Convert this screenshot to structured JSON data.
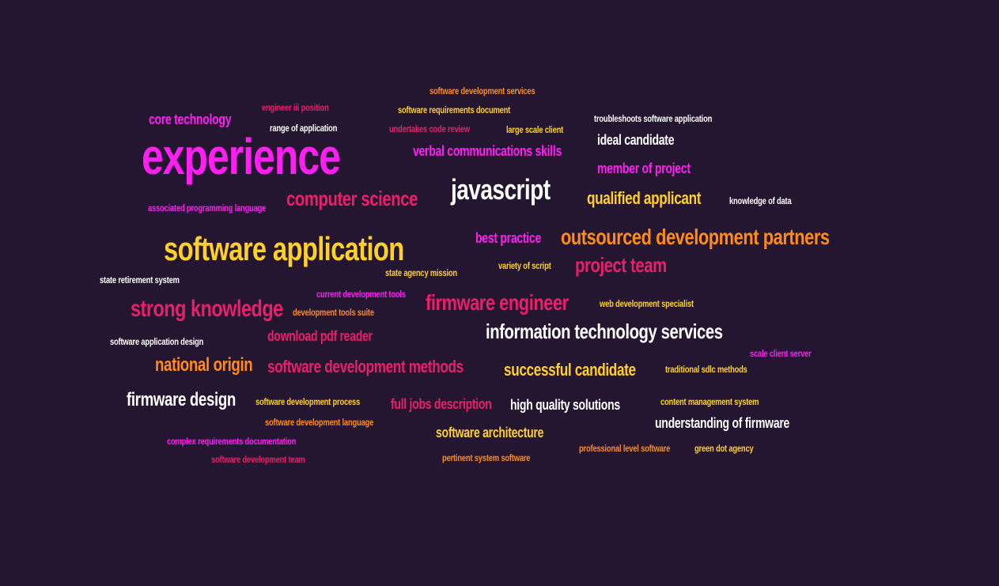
{
  "word_cloud": {
    "words": [
      {
        "text": "software development services",
        "color": "#ff8c1a"
      },
      {
        "text": "engineer iii position",
        "color": "#ea1f6a"
      },
      {
        "text": "software requirements document",
        "color": "#ffd028"
      },
      {
        "text": "core technology",
        "color": "#ff1ff2"
      },
      {
        "text": "range of application",
        "color": "#ffffff"
      },
      {
        "text": "undertakes code review",
        "color": "#ea1f6a"
      },
      {
        "text": "large scale client",
        "color": "#ffd028"
      },
      {
        "text": "troubleshoots software application",
        "color": "#ffffff"
      },
      {
        "text": "ideal candidate",
        "color": "#ffffff"
      },
      {
        "text": "experience",
        "color": "#ff1ff2"
      },
      {
        "text": "verbal communications skills",
        "color": "#ff1ff2"
      },
      {
        "text": "member of project",
        "color": "#ff1ff2"
      },
      {
        "text": "javascript",
        "color": "#ffffff"
      },
      {
        "text": "computer science",
        "color": "#ea1f6a"
      },
      {
        "text": "qualified applicant",
        "color": "#ffd028"
      },
      {
        "text": "knowledge of data",
        "color": "#ffffff"
      },
      {
        "text": "associated programming language",
        "color": "#ff1ff2"
      },
      {
        "text": "software application",
        "color": "#ffd028"
      },
      {
        "text": "best practice",
        "color": "#ff1ff2"
      },
      {
        "text": "outsourced development partners",
        "color": "#ff8c1a"
      },
      {
        "text": "variety of script",
        "color": "#ffd028"
      },
      {
        "text": "project team",
        "color": "#ea1f6a"
      },
      {
        "text": "state retirement system",
        "color": "#ffffff"
      },
      {
        "text": "state agency mission",
        "color": "#ffd028"
      },
      {
        "text": "current development tools",
        "color": "#ff1ff2"
      },
      {
        "text": "strong knowledge",
        "color": "#ea1f6a"
      },
      {
        "text": "development tools suite",
        "color": "#ff8c1a"
      },
      {
        "text": "firmware engineer",
        "color": "#ea1f6a"
      },
      {
        "text": "web development specialist",
        "color": "#ffd028"
      },
      {
        "text": "download pdf reader",
        "color": "#ea1f6a"
      },
      {
        "text": "information technology services",
        "color": "#ffffff"
      },
      {
        "text": "software application design",
        "color": "#ffffff"
      },
      {
        "text": "scale client server",
        "color": "#ff1ff2"
      },
      {
        "text": "national origin",
        "color": "#ff8c1a"
      },
      {
        "text": "software development methods",
        "color": "#ea1f6a"
      },
      {
        "text": "successful candidate",
        "color": "#ffd028"
      },
      {
        "text": "traditional sdlc methods",
        "color": "#ffd028"
      },
      {
        "text": "firmware design",
        "color": "#ffffff"
      },
      {
        "text": "software development process",
        "color": "#ffd028"
      },
      {
        "text": "full jobs description",
        "color": "#ea1f6a"
      },
      {
        "text": "high quality solutions",
        "color": "#ffffff"
      },
      {
        "text": "content management system",
        "color": "#ffd028"
      },
      {
        "text": "software development language",
        "color": "#ff8c1a"
      },
      {
        "text": "understanding of firmware",
        "color": "#ffffff"
      },
      {
        "text": "software architecture",
        "color": "#ffd028"
      },
      {
        "text": "complex requirements documentation",
        "color": "#ff1ff2"
      },
      {
        "text": "professional level software",
        "color": "#ff8c1a"
      },
      {
        "text": "green dot agency",
        "color": "#ffd028"
      },
      {
        "text": "software development team",
        "color": "#ea1f6a"
      },
      {
        "text": "pertinent system software",
        "color": "#ff8c1a"
      }
    ]
  }
}
